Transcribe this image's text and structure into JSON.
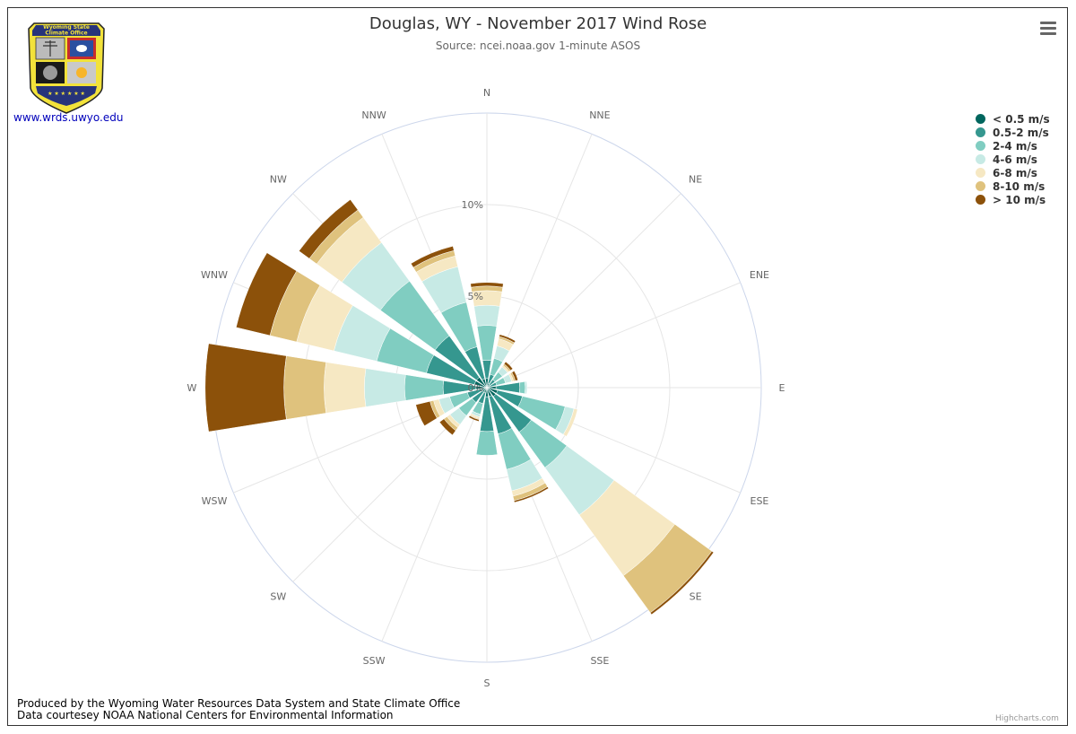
{
  "header": {
    "title": "Douglas, WY - November 2017 Wind Rose",
    "subtitle": "Source: ncei.noaa.gov 1-minute ASOS"
  },
  "logo": {
    "line1": "Wyoming State",
    "line2": "Climate Office",
    "link": "www.wrds.uwyo.edu"
  },
  "footer": {
    "line1": "Produced by the Wyoming Water Resources Data System and State Climate Office",
    "line2": "Data courtesey NOAA National Centers for Environmental Information",
    "credits": "Highcharts.com"
  },
  "menu_icon": "hamburger-menu-icon",
  "chart_data": {
    "type": "windrose",
    "directions": [
      "N",
      "NNE",
      "NE",
      "ENE",
      "E",
      "ESE",
      "SE",
      "SSE",
      "S",
      "SSW",
      "SW",
      "WSW",
      "W",
      "WNW",
      "NW",
      "NNW"
    ],
    "radial_tick_labels": [
      "0%",
      "5%",
      "10%"
    ],
    "radial_max_percent": 15,
    "series": [
      {
        "name": "< 0.5 m/s",
        "color": "#01665e",
        "values": [
          0.5,
          0.25,
          0.2,
          0.2,
          0.5,
          0.6,
          0.6,
          0.5,
          0.5,
          0.3,
          0.3,
          0.3,
          0.6,
          0.7,
          0.7,
          0.5
        ]
      },
      {
        "name": "0.5-2 m/s",
        "color": "#35978f",
        "values": [
          1.0,
          0.5,
          0.35,
          0.35,
          1.3,
          1.4,
          2.4,
          2.1,
          1.9,
          0.6,
          0.7,
          0.8,
          1.8,
          2.7,
          2.8,
          1.8
        ]
      },
      {
        "name": "2-4 m/s",
        "color": "#80cdc1",
        "values": [
          1.9,
          0.9,
          0.5,
          0.5,
          0.3,
          2.4,
          2.4,
          2.0,
          1.3,
          0.6,
          0.9,
          1.0,
          2.1,
          2.8,
          3.7,
          2.5
        ]
      },
      {
        "name": "4-6 m/s",
        "color": "#c7eae5",
        "values": [
          1.1,
          0.7,
          0.35,
          0.35,
          0.1,
          0.5,
          3.2,
          1.2,
          0,
          0.15,
          0.6,
          0.6,
          2.2,
          2.4,
          2.6,
          2.0
        ]
      },
      {
        "name": "6-8 m/s",
        "color": "#f6e8c3",
        "values": [
          0.8,
          0.4,
          0.1,
          0.1,
          0,
          0.2,
          4.1,
          0.3,
          0,
          0.1,
          0.2,
          0.3,
          2.2,
          2.1,
          1.7,
          0.6
        ]
      },
      {
        "name": "8-10 m/s",
        "color": "#dfc27d",
        "values": [
          0.25,
          0.12,
          0.1,
          0.1,
          0,
          0,
          2.5,
          0.25,
          0,
          0.05,
          0.2,
          0.2,
          2.2,
          1.5,
          0.5,
          0.3
        ]
      },
      {
        "name": "> 10 m/s",
        "color": "#8c510a",
        "values": [
          0.2,
          0.12,
          0.15,
          0.15,
          0,
          0,
          0.12,
          0.1,
          0,
          0.1,
          0.3,
          0.8,
          4.3,
          1.9,
          0.7,
          0.25
        ]
      }
    ]
  }
}
